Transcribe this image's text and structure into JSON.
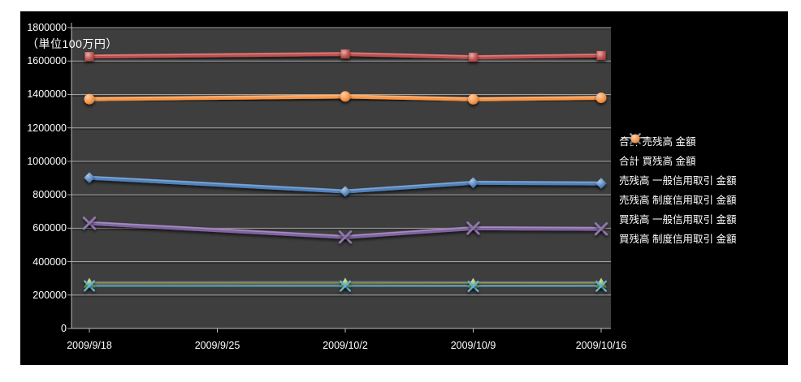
{
  "page": {
    "background": "#ffffff"
  },
  "canvas": {
    "background": "#000000"
  },
  "unit_label": "（単位100万円）",
  "chart_data": {
    "type": "line",
    "title": "",
    "xlabel": "",
    "ylabel": "",
    "categories": [
      "2009/9/18",
      "2009/9/25",
      "2009/10/2",
      "2009/10/9",
      "2009/10/16"
    ],
    "ylim": [
      0,
      1800000
    ],
    "y_ticks": [
      1800000,
      1600000,
      1400000,
      1200000,
      1000000,
      800000,
      600000,
      400000,
      200000,
      0
    ],
    "grid": true,
    "legend_position": "right",
    "plot_bg": "#3e3e3e",
    "gridline_color": "#a8a8a8",
    "axis_color": "#bdbdbd",
    "text_color": "#ffffff",
    "note": "no data points at 2009/9/25; lines connect straight across",
    "series": [
      {
        "name": "合計 売残高 金額",
        "color": "#4f81bd",
        "marker": "diamond",
        "values": [
          902000,
          null,
          820000,
          872000,
          868000
        ]
      },
      {
        "name": "合計 買残高 金額",
        "color": "#c0504d",
        "marker": "square",
        "values": [
          1627000,
          null,
          1642000,
          1623000,
          1633000
        ]
      },
      {
        "name": "売残高 一般信用取引 金額",
        "color": "#9bbb59",
        "marker": "triangle",
        "values": [
          272000,
          null,
          273000,
          272000,
          272000
        ]
      },
      {
        "name": "売残高 制度信用取引 金額",
        "color": "#8064a2",
        "marker": "x",
        "values": [
          630000,
          null,
          547000,
          600000,
          596000
        ]
      },
      {
        "name": "買残高 一般信用取引 金額",
        "color": "#4bacc6",
        "marker": "asterisk",
        "values": [
          255000,
          null,
          254000,
          252000,
          253000
        ]
      },
      {
        "name": "買残高 制度信用取引 金額",
        "color": "#f79646",
        "marker": "circle",
        "values": [
          1372000,
          null,
          1388000,
          1371000,
          1380000
        ]
      }
    ]
  }
}
